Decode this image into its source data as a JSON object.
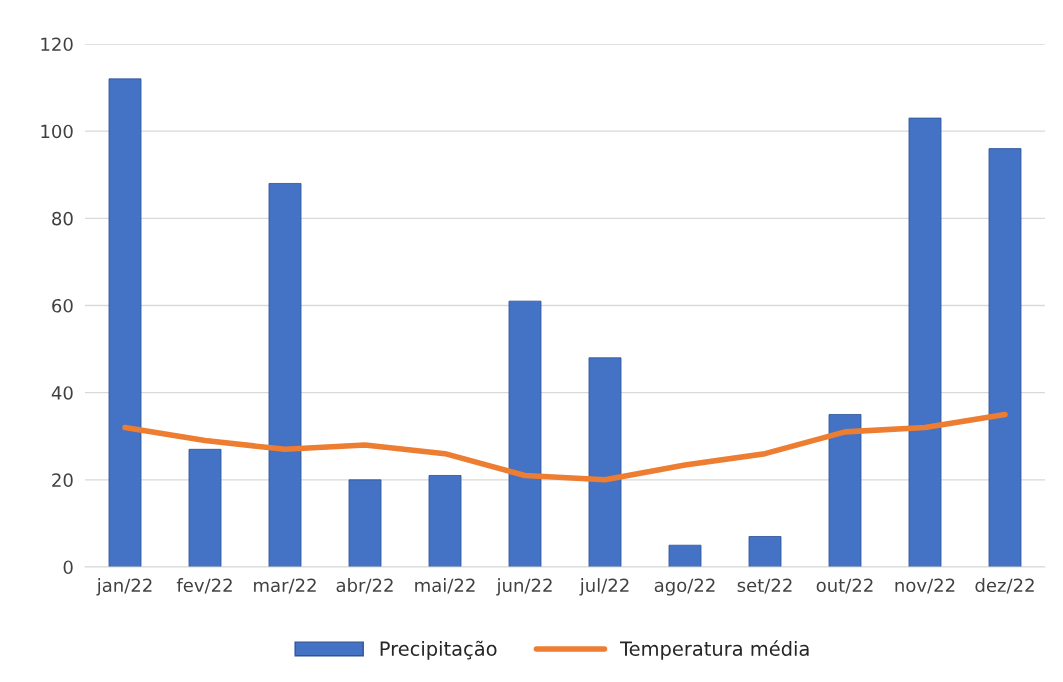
{
  "chart_data": {
    "type": "bar",
    "categories": [
      "jan/22",
      "fev/22",
      "mar/22",
      "abr/22",
      "mai/22",
      "jun/22",
      "jul/22",
      "ago/22",
      "set/22",
      "out/22",
      "nov/22",
      "dez/22"
    ],
    "series": [
      {
        "name": "Precipitação",
        "color": "#4472c4",
        "values": [
          112,
          27,
          88,
          20,
          21,
          61,
          48,
          5,
          7,
          35,
          103,
          96
        ]
      },
      {
        "name": "Temperatura média",
        "type": "line",
        "color": "#ed7d31",
        "values": [
          32,
          29,
          27,
          28,
          26,
          21,
          20,
          23.4,
          26,
          31,
          32,
          35
        ]
      }
    ],
    "ylim": [
      0,
      120
    ],
    "yticks": [
      0,
      20,
      40,
      60,
      80,
      100,
      120
    ],
    "grid": "y",
    "legend": "bottom",
    "marker": "none",
    "line_style": "solid"
  }
}
